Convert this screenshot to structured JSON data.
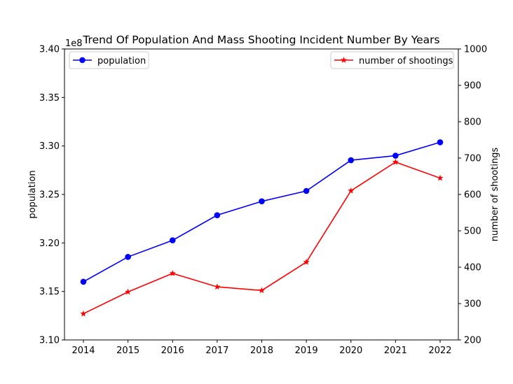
{
  "chart_data": {
    "type": "line",
    "title": "Trend Of Population And Mass Shooting Incident Number By Years",
    "categories": [
      "2014",
      "2015",
      "2016",
      "2017",
      "2018",
      "2019",
      "2020",
      "2021",
      "2022"
    ],
    "left_axis": {
      "label": "population",
      "offset_text": "1e8",
      "ylim": [
        3.1,
        3.4
      ],
      "ticks": [
        "3.10",
        "3.15",
        "3.20",
        "3.25",
        "3.30",
        "3.35",
        "3.40"
      ]
    },
    "right_axis": {
      "label": "number of shootings",
      "ylim": [
        200,
        1000
      ],
      "ticks": [
        "200",
        "300",
        "400",
        "500",
        "600",
        "700",
        "800",
        "900",
        "1000"
      ]
    },
    "series": [
      {
        "name": "population",
        "axis": "left",
        "color": "#0000ff",
        "marker": "circle",
        "legend_position": "upper left",
        "values": [
          3.16,
          3.1856,
          3.2027,
          3.2286,
          3.2429,
          3.2536,
          3.2853,
          3.29,
          3.3038
        ]
      },
      {
        "name": "number of shootings",
        "axis": "right",
        "color": "#ff0000",
        "marker": "star",
        "legend_position": "upper right",
        "values": [
          272,
          332,
          383,
          346,
          336,
          414,
          610,
          689,
          645
        ]
      }
    ],
    "grid": false
  }
}
